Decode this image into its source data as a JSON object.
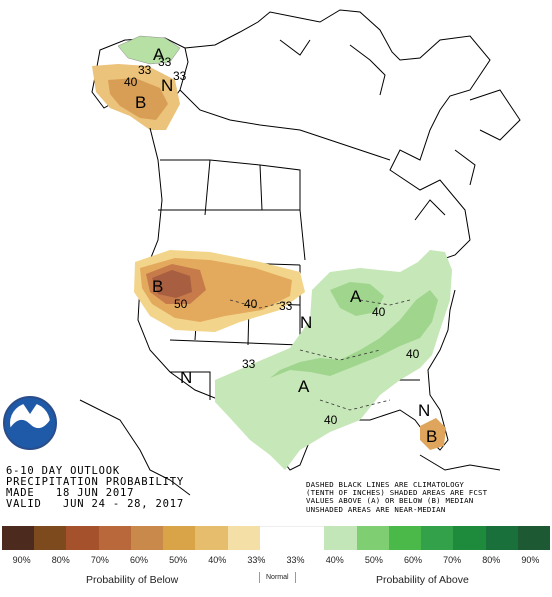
{
  "map": {
    "labels": {
      "ak_a": "A",
      "ak_b": "B",
      "ak_33a": "33",
      "ak_33b": "33",
      "ak_33c": "33",
      "ak_40": "40",
      "ak_n": "N",
      "nw_b": "B",
      "nw_50": "50",
      "nw_40": "40",
      "nw_33": "33",
      "n_1": "N",
      "n_2": "N",
      "n_3": "N",
      "ne_a": "A",
      "ne_40": "40",
      "mid_a": "A",
      "se_40": "40",
      "tx_40": "40",
      "sw_33": "33",
      "fl_b": "B"
    }
  },
  "colors": {
    "below_33": "#f7d98c",
    "below_40": "#e9b662",
    "below_50": "#d9965a",
    "below_60": "#b86b52",
    "above_33": "#c6e7b7",
    "above_40": "#9fd58d",
    "above_50": "#7bc76a",
    "outline": "#000000",
    "ocean": "#ffffff",
    "land": "#ffffff"
  },
  "logo": {
    "name": "noaa-logo",
    "text": "NOAA"
  },
  "info": {
    "line1": "6-10 DAY OUTLOOK",
    "line2": "PRECIPITATION PROBABILITY",
    "line3": "MADE   18 JUN 2017",
    "line4": "VALID   JUN 24 - 28, 2017"
  },
  "note": {
    "line1": "DASHED BLACK LINES ARE CLIMATOLOGY",
    "line2": "(TENTH OF INCHES) SHADED AREAS ARE FCST",
    "line3": "VALUES ABOVE (A) OR BELOW (B) MEDIAN",
    "line4": "UNSHADED AREAS ARE NEAR-MEDIAN"
  },
  "legend": {
    "colors": [
      "#4d2a1e",
      "#7d4a1e",
      "#a4512c",
      "#b9683c",
      "#c8894a",
      "#d9a347",
      "#e6bd6c",
      "#f4dfa6",
      "#ffffff",
      "#ffffff",
      "#c3e6b8",
      "#7fcf72",
      "#4bb94a",
      "#33a04a",
      "#1e8a3b",
      "#19703a",
      "#1d5a34"
    ],
    "ticks": [
      "90%",
      "80%",
      "70%",
      "60%",
      "50%",
      "40%",
      "33%",
      "33%",
      "40%",
      "50%",
      "60%",
      "70%",
      "80%",
      "90%"
    ],
    "below_caption": "Probability of Below",
    "normal_caption": "Normal",
    "above_caption": "Probability of Above"
  }
}
